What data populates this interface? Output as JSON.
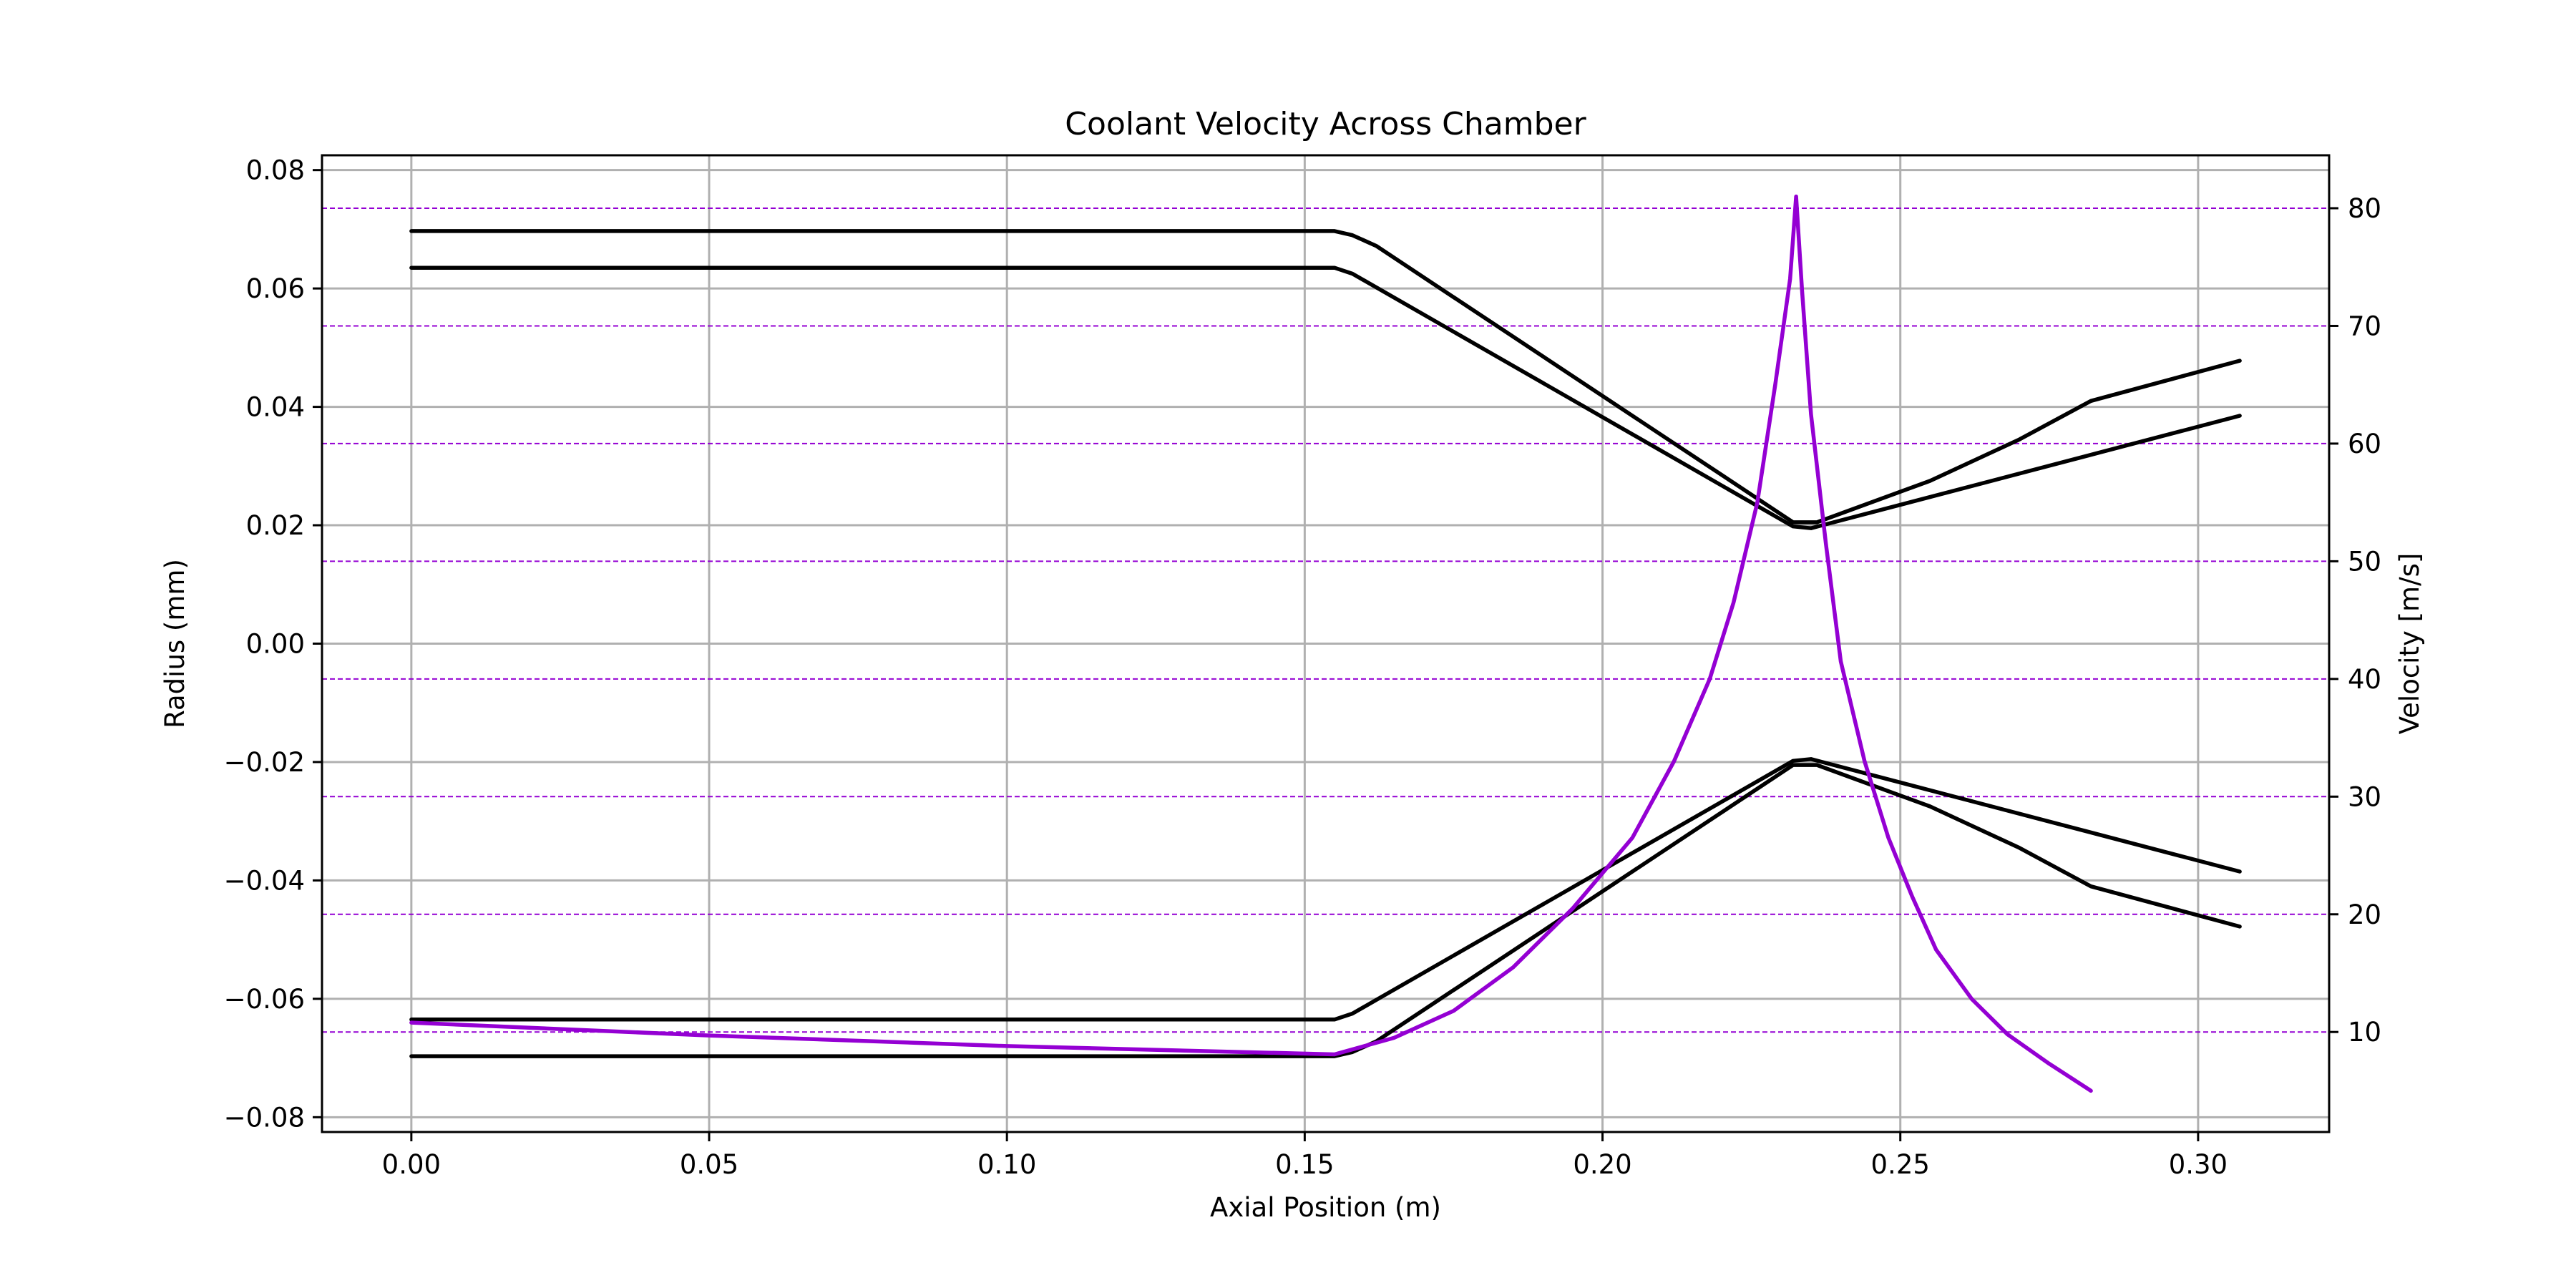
{
  "chart_data": {
    "type": "line",
    "title": "Coolant Velocity Across Chamber",
    "xlabel": "Axial Position (m)",
    "ylabel": "Radius (mm)",
    "y2label": "Velocity [m/s]",
    "xlim": [
      -0.015,
      0.322
    ],
    "ylim": [
      -0.0825,
      0.0825
    ],
    "y2lim": [
      1.5,
      84.5
    ],
    "grid": true,
    "x_ticks": [
      "0.00",
      "0.05",
      "0.10",
      "0.15",
      "0.20",
      "0.25",
      "0.30"
    ],
    "y_ticks": [
      "0.08",
      "0.06",
      "0.04",
      "0.02",
      "0.00",
      "−0.02",
      "−0.04",
      "−0.06",
      "−0.08"
    ],
    "y2_ticks": [
      "10",
      "20",
      "30",
      "40",
      "50",
      "60",
      "70",
      "80"
    ],
    "colors": {
      "contour": "#000000",
      "velocity": "#9400d3",
      "grid": "#b0b0b0"
    },
    "outer_wall": {
      "x": [
        0.0,
        0.155,
        0.158,
        0.162,
        0.232,
        0.236,
        0.255,
        0.27,
        0.282,
        0.307
      ],
      "y": [
        0.0697,
        0.0697,
        0.069,
        0.0672,
        0.0205,
        0.0205,
        0.0275,
        0.0345,
        0.041,
        0.0478
      ]
    },
    "inner_wall": {
      "x": [
        0.0,
        0.155,
        0.158,
        0.232,
        0.235,
        0.307
      ],
      "y": [
        0.0635,
        0.0635,
        0.0625,
        0.0198,
        0.0195,
        0.0385
      ]
    },
    "velocity": {
      "x": [
        0.0,
        0.05,
        0.1,
        0.155,
        0.165,
        0.175,
        0.185,
        0.195,
        0.205,
        0.212,
        0.218,
        0.222,
        0.226,
        0.229,
        0.2315,
        0.2325,
        0.2335,
        0.235,
        0.2375,
        0.24,
        0.244,
        0.248,
        0.252,
        0.256,
        0.262,
        0.268,
        0.275,
        0.282
      ],
      "y": [
        10.8,
        9.7,
        8.8,
        8.1,
        9.5,
        11.8,
        15.5,
        20.5,
        26.5,
        33.0,
        40.0,
        46.5,
        55.0,
        65.0,
        74.0,
        81.0,
        73.0,
        62.5,
        51.5,
        41.5,
        33.0,
        26.5,
        21.5,
        17.0,
        12.8,
        9.8,
        7.3,
        5.0
      ]
    }
  }
}
